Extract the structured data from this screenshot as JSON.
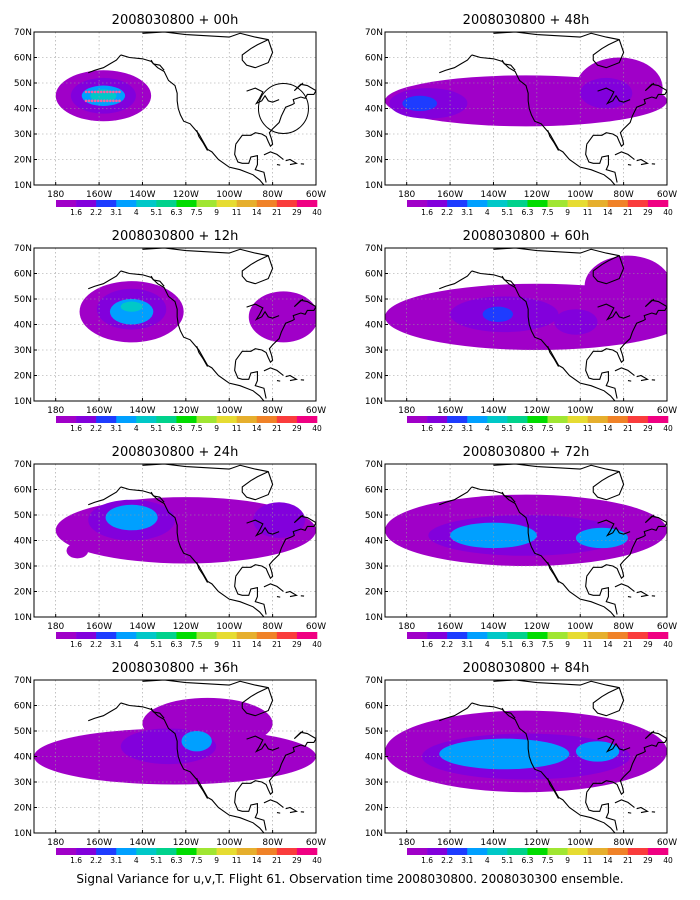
{
  "caption": "Signal Variance for u,v,T. Flight 61. Observation time 2008030800. 2008030300 ensemble.",
  "colors": [
    "#a000c8",
    "#8200dc",
    "#1e3cff",
    "#00a0ff",
    "#00c8c8",
    "#00d28c",
    "#00dc00",
    "#a0e632",
    "#e6dc32",
    "#e6af2d",
    "#f08228",
    "#fa3c3c",
    "#f00082"
  ],
  "chart_data": {
    "type": "heatmap",
    "xlim": [
      170,
      300
    ],
    "ylim": [
      10,
      70
    ],
    "x_ticks": [
      "180",
      "160W",
      "140W",
      "120W",
      "100W",
      "80W",
      "60W"
    ],
    "y_ticks": [
      "10N",
      "20N",
      "30N",
      "40N",
      "50N",
      "60N",
      "70N"
    ],
    "colorbar_labels": [
      "1.6",
      "2.2",
      "3.1",
      "4",
      "5.1",
      "6.3",
      "7.5",
      "9",
      "11",
      "14",
      "21",
      "29",
      "40"
    ],
    "panels": [
      {
        "title": "2008030800 + 00h",
        "blobs": [
          {
            "lon": 202,
            "lat": 45,
            "rx": 22,
            "ry": 10,
            "level": 0
          },
          {
            "lon": 202,
            "lat": 45,
            "rx": 15,
            "ry": 7,
            "level": 1
          },
          {
            "lon": 202,
            "lat": 45,
            "rx": 10,
            "ry": 4,
            "level": 3
          },
          {
            "lon": 202,
            "lat": 45,
            "rx": 6,
            "ry": 2.5,
            "level": 4
          }
        ]
      },
      {
        "title": "2008030800 + 48h",
        "blobs": [
          {
            "lon": 235,
            "lat": 43,
            "rx": 65,
            "ry": 10,
            "level": 0
          },
          {
            "lon": 278,
            "lat": 48,
            "rx": 20,
            "ry": 12,
            "level": 0
          },
          {
            "lon": 190,
            "lat": 42,
            "rx": 18,
            "ry": 6,
            "level": 1
          },
          {
            "lon": 272,
            "lat": 46,
            "rx": 12,
            "ry": 6,
            "level": 1
          },
          {
            "lon": 186,
            "lat": 42,
            "rx": 8,
            "ry": 3,
            "level": 2
          }
        ]
      },
      {
        "title": "2008030800 + 12h",
        "blobs": [
          {
            "lon": 215,
            "lat": 45,
            "rx": 24,
            "ry": 12,
            "level": 0
          },
          {
            "lon": 285,
            "lat": 43,
            "rx": 16,
            "ry": 10,
            "level": 0
          },
          {
            "lon": 215,
            "lat": 46,
            "rx": 16,
            "ry": 8,
            "level": 1
          },
          {
            "lon": 215,
            "lat": 45,
            "rx": 10,
            "ry": 5,
            "level": 3
          },
          {
            "lon": 215,
            "lat": 47,
            "rx": 5,
            "ry": 2,
            "level": 4
          }
        ]
      },
      {
        "title": "2008030800 + 60h",
        "blobs": [
          {
            "lon": 240,
            "lat": 43,
            "rx": 70,
            "ry": 13,
            "level": 0
          },
          {
            "lon": 282,
            "lat": 55,
            "rx": 20,
            "ry": 12,
            "level": 0
          },
          {
            "lon": 225,
            "lat": 44,
            "rx": 25,
            "ry": 7,
            "level": 1
          },
          {
            "lon": 258,
            "lat": 41,
            "rx": 10,
            "ry": 5,
            "level": 1
          },
          {
            "lon": 222,
            "lat": 44,
            "rx": 7,
            "ry": 3,
            "level": 2
          }
        ]
      },
      {
        "title": "2008030800 + 24h",
        "blobs": [
          {
            "lon": 240,
            "lat": 44,
            "rx": 60,
            "ry": 13,
            "level": 0
          },
          {
            "lon": 215,
            "lat": 48,
            "rx": 20,
            "ry": 8,
            "level": 1
          },
          {
            "lon": 283,
            "lat": 48,
            "rx": 12,
            "ry": 7,
            "level": 1
          },
          {
            "lon": 215,
            "lat": 49,
            "rx": 12,
            "ry": 5,
            "level": 3
          },
          {
            "lon": 190,
            "lat": 36,
            "rx": 5,
            "ry": 3,
            "level": 0
          }
        ]
      },
      {
        "title": "2008030800 + 72h",
        "blobs": [
          {
            "lon": 235,
            "lat": 44,
            "rx": 65,
            "ry": 14,
            "level": 0
          },
          {
            "lon": 235,
            "lat": 42,
            "rx": 45,
            "ry": 8,
            "level": 1
          },
          {
            "lon": 220,
            "lat": 42,
            "rx": 20,
            "ry": 5,
            "level": 3
          },
          {
            "lon": 270,
            "lat": 41,
            "rx": 12,
            "ry": 4,
            "level": 3
          }
        ]
      },
      {
        "title": "2008030800 + 36h",
        "blobs": [
          {
            "lon": 235,
            "lat": 40,
            "rx": 65,
            "ry": 11,
            "level": 0
          },
          {
            "lon": 250,
            "lat": 53,
            "rx": 30,
            "ry": 10,
            "level": 0
          },
          {
            "lon": 232,
            "lat": 44,
            "rx": 22,
            "ry": 7,
            "level": 1
          },
          {
            "lon": 245,
            "lat": 46,
            "rx": 7,
            "ry": 4,
            "level": 3
          }
        ]
      },
      {
        "title": "2008030800 + 84h",
        "blobs": [
          {
            "lon": 235,
            "lat": 42,
            "rx": 65,
            "ry": 16,
            "level": 0
          },
          {
            "lon": 235,
            "lat": 40,
            "rx": 48,
            "ry": 9,
            "level": 1
          },
          {
            "lon": 225,
            "lat": 41,
            "rx": 30,
            "ry": 6,
            "level": 3
          },
          {
            "lon": 268,
            "lat": 42,
            "rx": 10,
            "ry": 4,
            "level": 3
          }
        ]
      }
    ]
  }
}
